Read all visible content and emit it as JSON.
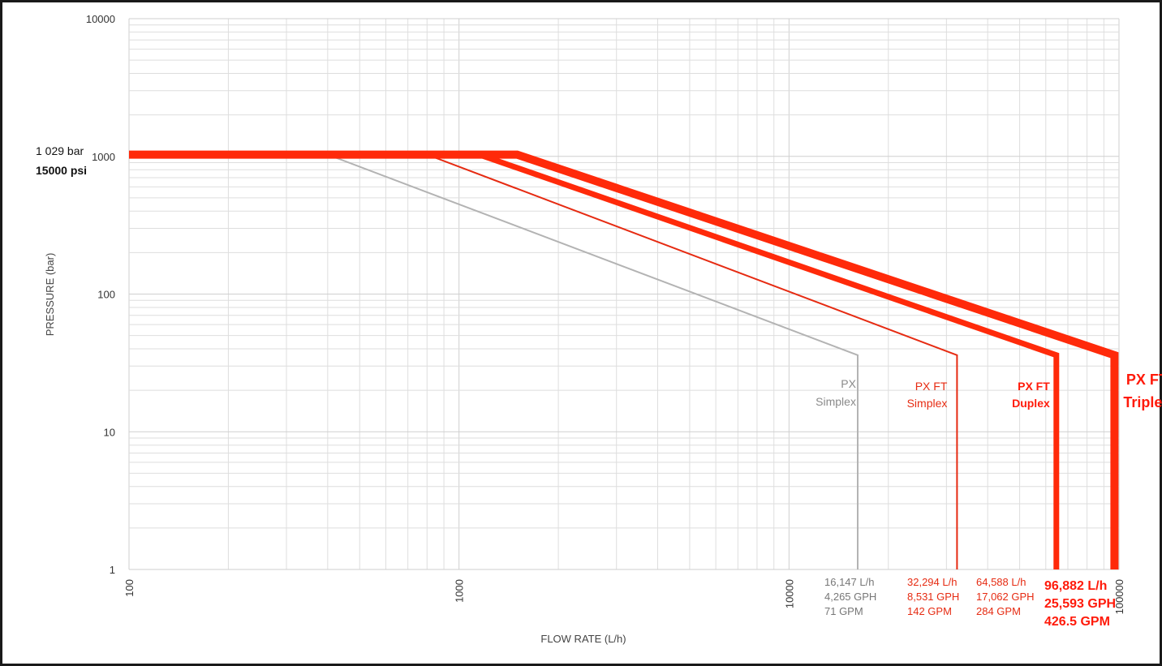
{
  "chart_data": {
    "type": "line",
    "xlabel": "FLOW RATE (L/h)",
    "ylabel": "PRESSURE (bar)",
    "xscale": "log",
    "yscale": "log",
    "xlim": [
      100,
      100000
    ],
    "ylim": [
      1,
      10000
    ],
    "grid": true,
    "x_tick_labels": [
      "100",
      "1000",
      "10000",
      "100000"
    ],
    "y_tick_labels": [
      "1",
      "10",
      "100",
      "1000",
      "10000"
    ],
    "max_pressure_annotation": [
      "1 029 bar",
      "15000 psi"
    ],
    "series": [
      {
        "name": "PX Simplex",
        "label_lines": [
          "PX",
          "Simplex"
        ],
        "color": "#b3b3b3",
        "weight": "thin",
        "points": [
          [
            100,
            1029
          ],
          [
            400,
            1029
          ],
          [
            16147,
            36
          ],
          [
            16147,
            1
          ]
        ],
        "capacity_lines": [
          "16,147 L/h",
          "4,265 GPH",
          "71 GPM"
        ],
        "capacity_color": "#777777"
      },
      {
        "name": "PX FT Simplex",
        "label_lines": [
          "PX FT",
          "Simplex"
        ],
        "color": "#e62b12",
        "weight": "thin",
        "points": [
          [
            100,
            1029
          ],
          [
            800,
            1029
          ],
          [
            32294,
            36
          ],
          [
            32294,
            1
          ]
        ],
        "capacity_lines": [
          "32,294 L/h",
          "8,531 GPH",
          "142 GPM"
        ],
        "capacity_color": "#e62b12"
      },
      {
        "name": "PX FT Duplex",
        "label_lines": [
          "PX FT",
          "Duplex"
        ],
        "color": "#ff2a0a",
        "weight": "medium",
        "points": [
          [
            100,
            1029
          ],
          [
            1150,
            1029
          ],
          [
            64588,
            36
          ],
          [
            64588,
            1
          ]
        ],
        "capacity_lines": [
          "64,588 L/h",
          "17,062 GPH",
          "284 GPM"
        ],
        "capacity_color": "#e62b12"
      },
      {
        "name": "PX FT Triplex",
        "label_lines": [
          "PX FT",
          "Triplex"
        ],
        "color": "#ff2a0a",
        "weight": "heavy",
        "points": [
          [
            100,
            1029
          ],
          [
            1500,
            1029
          ],
          [
            96882,
            36
          ],
          [
            96882,
            1
          ]
        ],
        "capacity_lines": [
          "96,882 L/h",
          "25,593 GPH",
          "426.5 GPM"
        ],
        "capacity_color": "#ff1a0a"
      }
    ]
  }
}
